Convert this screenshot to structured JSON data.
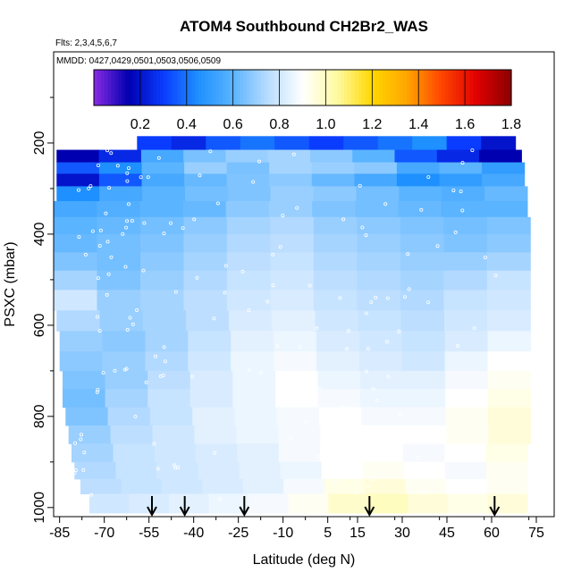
{
  "chart_data": {
    "type": "heatmap",
    "title": "ATOM4 Southbound CH2Br2_WAS",
    "flights_note": "Flts: 2,3,4,5,6,7",
    "dates_note": "MMDD: 0427,0429,0501,0503,0506,0509",
    "xlabel": "Latitude (deg N)",
    "ylabel": "PSXC (mbar)",
    "xlim": [
      -87,
      81
    ],
    "ylim": [
      1020,
      0
    ],
    "x_ticks": [
      -85,
      -70,
      -55,
      -40,
      -25,
      -10,
      5,
      15,
      30,
      45,
      60,
      75
    ],
    "x_tick_labels": [
      "-85",
      "-70",
      "-55",
      "-40",
      "-25",
      "-10",
      "5",
      "15",
      "30",
      "45",
      "60",
      "75"
    ],
    "y_ticks": [
      200,
      400,
      600,
      800,
      1000
    ],
    "y_tick_labels": [
      "200",
      "400",
      "600",
      "800",
      "1000"
    ],
    "colorbar": {
      "min": 0.0,
      "max": 1.8,
      "ticks": [
        0.2,
        0.4,
        0.6,
        0.8,
        1.0,
        1.2,
        1.4,
        1.6,
        1.8
      ],
      "tick_labels": [
        "0.2",
        "0.4",
        "0.6",
        "0.8",
        "1.0",
        "1.2",
        "1.4",
        "1.6",
        "1.8"
      ],
      "colors": [
        "#8a2be2",
        "#0000b0",
        "#0a3cff",
        "#1e90ff",
        "#5ab4ff",
        "#b8dcff",
        "#ffffff",
        "#fffaa0",
        "#ffd700",
        "#ffa500",
        "#ff4500",
        "#e00000",
        "#8b0000"
      ]
    },
    "arrows_latitude": [
      -54,
      -43,
      -23,
      19,
      61
    ],
    "pressure_levels": [
      200,
      230,
      255,
      280,
      310,
      345,
      380,
      420,
      460,
      500,
      545,
      590,
      635,
      680,
      720,
      760,
      800,
      840,
      880,
      920,
      955,
      985
    ],
    "rows": [
      {
        "p": 200,
        "lat_min": -59,
        "lat_max": 68,
        "values": [
          0.3,
          0.25,
          0.35,
          0.4,
          0.35,
          0.3,
          0.35,
          0.4,
          0.45,
          0.3,
          0.2
        ]
      },
      {
        "p": 230,
        "lat_min": -86,
        "lat_max": 70,
        "values": [
          0.15,
          0.25,
          0.55,
          0.65,
          0.7,
          0.72,
          0.68,
          0.6,
          0.35,
          0.25,
          0.15
        ]
      },
      {
        "p": 255,
        "lat_min": -86,
        "lat_max": 71,
        "values": [
          0.35,
          0.45,
          0.6,
          0.7,
          0.65,
          0.72,
          0.7,
          0.68,
          0.55,
          0.6,
          0.5
        ]
      },
      {
        "p": 280,
        "lat_min": -86,
        "lat_max": 71,
        "values": [
          0.2,
          0.35,
          0.55,
          0.62,
          0.66,
          0.68,
          0.62,
          0.55,
          0.45,
          0.5,
          0.55
        ]
      },
      {
        "p": 310,
        "lat_min": -86,
        "lat_max": 72,
        "values": [
          0.45,
          0.55,
          0.6,
          0.64,
          0.66,
          0.7,
          0.68,
          0.64,
          0.6,
          0.58,
          0.62
        ]
      },
      {
        "p": 345,
        "lat_min": -87,
        "lat_max": 72,
        "values": [
          0.55,
          0.58,
          0.6,
          0.62,
          0.68,
          0.7,
          0.66,
          0.64,
          0.62,
          0.6,
          0.6
        ]
      },
      {
        "p": 380,
        "lat_min": -87,
        "lat_max": 73,
        "values": [
          0.6,
          0.62,
          0.64,
          0.68,
          0.72,
          0.74,
          0.7,
          0.68,
          0.66,
          0.64,
          0.66
        ]
      },
      {
        "p": 420,
        "lat_min": -87,
        "lat_max": 73,
        "values": [
          0.62,
          0.64,
          0.66,
          0.7,
          0.74,
          0.76,
          0.72,
          0.7,
          0.68,
          0.66,
          0.68
        ]
      },
      {
        "p": 460,
        "lat_min": -87,
        "lat_max": 73,
        "values": [
          0.66,
          0.64,
          0.68,
          0.72,
          0.76,
          0.78,
          0.74,
          0.72,
          0.7,
          0.7,
          0.72
        ]
      },
      {
        "p": 500,
        "lat_min": -87,
        "lat_max": 73,
        "values": [
          0.72,
          0.66,
          0.7,
          0.74,
          0.78,
          0.8,
          0.76,
          0.74,
          0.72,
          0.74,
          0.78
        ]
      },
      {
        "p": 545,
        "lat_min": -87,
        "lat_max": 73,
        "values": [
          0.8,
          0.7,
          0.72,
          0.76,
          0.8,
          0.82,
          0.78,
          0.76,
          0.74,
          0.78,
          0.8
        ]
      },
      {
        "p": 590,
        "lat_min": -86,
        "lat_max": 73,
        "values": [
          0.74,
          0.7,
          0.72,
          0.76,
          0.82,
          0.84,
          0.8,
          0.78,
          0.76,
          0.8,
          0.82
        ]
      },
      {
        "p": 635,
        "lat_min": -85,
        "lat_max": 73,
        "values": [
          0.7,
          0.68,
          0.72,
          0.78,
          0.84,
          0.86,
          0.82,
          0.8,
          0.78,
          0.82,
          0.86
        ]
      },
      {
        "p": 680,
        "lat_min": -85,
        "lat_max": 73,
        "values": [
          0.68,
          0.7,
          0.74,
          0.8,
          0.86,
          0.88,
          0.84,
          0.82,
          0.8,
          0.86,
          0.9
        ]
      },
      {
        "p": 720,
        "lat_min": -84,
        "lat_max": 73,
        "values": [
          0.66,
          0.7,
          0.76,
          0.82,
          0.86,
          0.9,
          0.86,
          0.84,
          0.84,
          0.88,
          0.92
        ]
      },
      {
        "p": 760,
        "lat_min": -84,
        "lat_max": 73,
        "values": [
          0.64,
          0.72,
          0.78,
          0.82,
          0.86,
          0.9,
          0.88,
          0.86,
          0.86,
          0.9,
          0.94
        ]
      },
      {
        "p": 800,
        "lat_min": -83,
        "lat_max": 73,
        "values": [
          0.66,
          0.74,
          0.78,
          0.84,
          0.86,
          0.88,
          0.9,
          0.88,
          0.88,
          0.92,
          0.96
        ]
      },
      {
        "p": 840,
        "lat_min": -82,
        "lat_max": 73,
        "values": [
          0.7,
          0.76,
          0.8,
          0.84,
          0.86,
          0.88,
          0.9,
          0.9,
          0.9,
          0.92,
          0.96
        ]
      },
      {
        "p": 880,
        "lat_min": -81,
        "lat_max": 72,
        "values": [
          0.72,
          0.78,
          0.8,
          0.82,
          0.84,
          0.88,
          0.9,
          0.9,
          0.88,
          0.9,
          0.94
        ]
      },
      {
        "p": 920,
        "lat_min": -80,
        "lat_max": 72,
        "values": [
          0.74,
          0.78,
          0.8,
          0.82,
          0.84,
          0.86,
          0.9,
          0.92,
          0.9,
          0.88,
          0.92
        ]
      },
      {
        "p": 955,
        "lat_min": -78,
        "lat_max": 72,
        "values": [
          0.76,
          0.78,
          0.8,
          0.82,
          0.84,
          0.88,
          0.94,
          0.96,
          0.92,
          0.9,
          0.92
        ]
      },
      {
        "p": 985,
        "lat_min": -75,
        "lat_max": 72,
        "values": [
          0.8,
          0.82,
          0.84,
          0.86,
          0.88,
          0.92,
          0.98,
          1.0,
          0.96,
          0.94,
          0.96
        ]
      }
    ]
  }
}
